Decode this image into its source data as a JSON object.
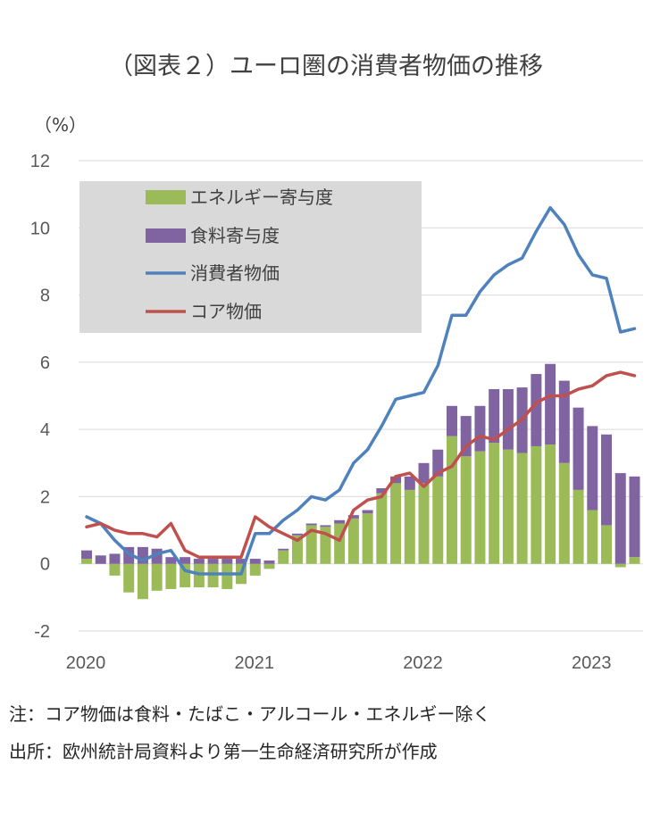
{
  "chart_data": {
    "type": "bar",
    "title": "（図表２）ユーロ圏の消費者物価の推移",
    "ylabel": "（%）",
    "ylim": [
      -2,
      12
    ],
    "yticks": [
      12,
      10,
      8,
      6,
      4,
      2,
      0,
      -2
    ],
    "xticks": [
      {
        "label": "2020",
        "month_index": 0
      },
      {
        "label": "2021",
        "month_index": 12
      },
      {
        "label": "2022",
        "month_index": 24
      },
      {
        "label": "2023",
        "month_index": 36
      }
    ],
    "months": [
      "2020-01",
      "2020-02",
      "2020-03",
      "2020-04",
      "2020-05",
      "2020-06",
      "2020-07",
      "2020-08",
      "2020-09",
      "2020-10",
      "2020-11",
      "2020-12",
      "2021-01",
      "2021-02",
      "2021-03",
      "2021-04",
      "2021-05",
      "2021-06",
      "2021-07",
      "2021-08",
      "2021-09",
      "2021-10",
      "2021-11",
      "2021-12",
      "2022-01",
      "2022-02",
      "2022-03",
      "2022-04",
      "2022-05",
      "2022-06",
      "2022-07",
      "2022-08",
      "2022-09",
      "2022-10",
      "2022-11",
      "2022-12",
      "2023-01",
      "2023-02",
      "2023-03",
      "2023-04"
    ],
    "legend_position": "top-left",
    "series": [
      {
        "name": "エネルギー寄与度",
        "kind": "bar",
        "color": "#9bbb59",
        "values": [
          0.15,
          0.0,
          -0.35,
          -0.85,
          -1.05,
          -0.8,
          -0.75,
          -0.7,
          -0.7,
          -0.7,
          -0.75,
          -0.6,
          -0.35,
          -0.15,
          0.4,
          0.85,
          1.15,
          1.1,
          1.2,
          1.35,
          1.5,
          2.1,
          2.4,
          2.2,
          2.4,
          2.6,
          3.8,
          3.2,
          3.35,
          3.6,
          3.4,
          3.3,
          3.5,
          3.55,
          3.0,
          2.2,
          1.6,
          1.15,
          -0.1,
          0.2
        ]
      },
      {
        "name": "食料寄与度",
        "kind": "bar",
        "color": "#8064a2",
        "values": [
          0.25,
          0.25,
          0.3,
          0.5,
          0.5,
          0.45,
          0.2,
          0.2,
          0.15,
          0.15,
          0.15,
          0.15,
          0.15,
          0.1,
          0.05,
          0.05,
          0.05,
          0.05,
          0.1,
          0.1,
          0.1,
          0.15,
          0.2,
          0.4,
          0.6,
          0.8,
          0.9,
          1.2,
          1.35,
          1.6,
          1.8,
          1.95,
          2.15,
          2.4,
          2.45,
          2.45,
          2.5,
          2.7,
          2.7,
          2.4
        ]
      },
      {
        "name": "消費者物価",
        "kind": "line",
        "color": "#4f81bd",
        "values": [
          1.4,
          1.2,
          0.7,
          0.3,
          0.1,
          0.3,
          0.4,
          -0.2,
          -0.3,
          -0.3,
          -0.3,
          -0.3,
          0.9,
          0.9,
          1.3,
          1.6,
          2.0,
          1.9,
          2.2,
          3.0,
          3.4,
          4.1,
          4.9,
          5.0,
          5.1,
          5.9,
          7.4,
          7.4,
          8.1,
          8.6,
          8.9,
          9.1,
          9.9,
          10.6,
          10.1,
          9.2,
          8.6,
          8.5,
          6.9,
          7.0
        ]
      },
      {
        "name": "コア物価",
        "kind": "line",
        "color": "#c0504d",
        "values": [
          1.1,
          1.2,
          1.0,
          0.9,
          0.9,
          0.8,
          1.2,
          0.4,
          0.2,
          0.2,
          0.2,
          0.2,
          1.4,
          1.1,
          0.9,
          0.7,
          1.0,
          0.9,
          0.7,
          1.6,
          1.9,
          2.0,
          2.6,
          2.7,
          2.3,
          2.7,
          2.9,
          3.5,
          3.8,
          3.7,
          4.0,
          4.3,
          4.8,
          5.0,
          5.0,
          5.2,
          5.3,
          5.6,
          5.7,
          5.6
        ]
      }
    ]
  },
  "notes": {
    "line1": "注：コア物価は食料・たばこ・アルコール・エネルギー除く",
    "line2": "出所：欧州統計局資料より第一生命経済研究所が作成"
  }
}
